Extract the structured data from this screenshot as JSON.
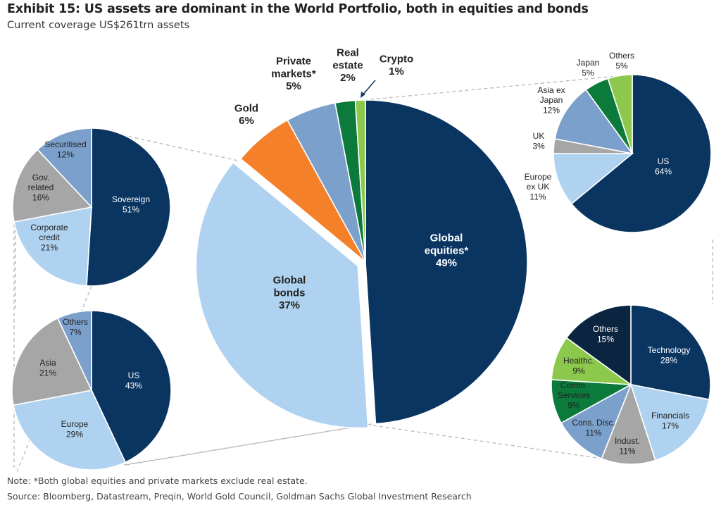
{
  "header": {
    "title": "Exhibit 15: US assets are dominant in the World Portfolio, both in equities and bonds",
    "subtitle": "Current coverage US$261trn assets"
  },
  "footer": {
    "note": "Note: *Both global equities and private markets exclude real estate.",
    "source": "Source: Bloomberg, Datastream, Preqin, World Gold Council, Goldman Sachs Global Investment Research"
  },
  "colors": {
    "navy": "#0a3560",
    "light_blue": "#aed2f0",
    "orange": "#f5802a",
    "mid_blue": "#7ba0cb",
    "dark_green": "#0b7a3b",
    "light_green": "#8cc84b",
    "grey": "#a6a6a6",
    "darkest": "#0b2440"
  },
  "chart_data": [
    {
      "id": "main",
      "type": "pie",
      "slices": [
        {
          "lines": [
            "Global",
            "equities*",
            "49%"
          ],
          "value": 49,
          "color": "#0a3560"
        },
        {
          "lines": [
            "Global",
            "bonds",
            "37%"
          ],
          "value": 37,
          "color": "#aed2f0"
        },
        {
          "lines": [
            "Gold",
            "6%"
          ],
          "value": 6,
          "color": "#f5802a"
        },
        {
          "lines": [
            "Private",
            "markets*",
            "5%"
          ],
          "value": 5,
          "color": "#7ba0cb"
        },
        {
          "lines": [
            "Real",
            "estate",
            "2%"
          ],
          "value": 2,
          "color": "#0b7a3b"
        },
        {
          "lines": [
            "Crypto",
            "1%"
          ],
          "value": 1,
          "color": "#8cc84b"
        }
      ]
    },
    {
      "id": "bonds-by-type",
      "type": "pie",
      "slices": [
        {
          "lines": [
            "Sovereign",
            "51%"
          ],
          "value": 51,
          "color": "#0a3560"
        },
        {
          "lines": [
            "Corporate",
            "credit",
            "21%"
          ],
          "value": 21,
          "color": "#aed2f0"
        },
        {
          "lines": [
            "Gov.",
            "related",
            "16%"
          ],
          "value": 16,
          "color": "#a6a6a6"
        },
        {
          "lines": [
            "Securitised",
            "12%"
          ],
          "value": 12,
          "color": "#7ba0cb"
        }
      ]
    },
    {
      "id": "bonds-by-region",
      "type": "pie",
      "slices": [
        {
          "lines": [
            "US",
            "43%"
          ],
          "value": 43,
          "color": "#0a3560"
        },
        {
          "lines": [
            "Europe",
            "29%"
          ],
          "value": 29,
          "color": "#aed2f0"
        },
        {
          "lines": [
            "Asia",
            "21%"
          ],
          "value": 21,
          "color": "#a6a6a6"
        },
        {
          "lines": [
            "Others",
            "7%"
          ],
          "value": 7,
          "color": "#7ba0cb"
        }
      ]
    },
    {
      "id": "equities-by-region",
      "type": "pie",
      "slices": [
        {
          "lines": [
            "US",
            "64%"
          ],
          "value": 64,
          "color": "#0a3560"
        },
        {
          "lines": [
            "Europe",
            "ex UK",
            "11%"
          ],
          "value": 11,
          "color": "#aed2f0"
        },
        {
          "lines": [
            "UK",
            "3%"
          ],
          "value": 3,
          "color": "#a6a6a6"
        },
        {
          "lines": [
            "Asia ex",
            "Japan",
            "12%"
          ],
          "value": 12,
          "color": "#7ba0cb"
        },
        {
          "lines": [
            "Japan",
            "5%"
          ],
          "value": 5,
          "color": "#0b7a3b"
        },
        {
          "lines": [
            "Others",
            "5%"
          ],
          "value": 5,
          "color": "#8cc84b"
        }
      ]
    },
    {
      "id": "equities-by-sector",
      "type": "pie",
      "slices": [
        {
          "lines": [
            "Technology",
            "28%"
          ],
          "value": 28,
          "color": "#0a3560"
        },
        {
          "lines": [
            "Financials",
            "17%"
          ],
          "value": 17,
          "color": "#aed2f0"
        },
        {
          "lines": [
            "Indust.",
            "11%"
          ],
          "value": 11,
          "color": "#a6a6a6"
        },
        {
          "lines": [
            "Cons. Disc.",
            "11%"
          ],
          "value": 11,
          "color": "#7ba0cb"
        },
        {
          "lines": [
            "Comm.",
            "Services",
            "9%"
          ],
          "value": 9,
          "color": "#0b7a3b"
        },
        {
          "lines": [
            "Healthc.",
            "9%"
          ],
          "value": 9,
          "color": "#8cc84b"
        },
        {
          "lines": [
            "Others",
            "15%"
          ],
          "value": 15,
          "color": "#0b2440"
        }
      ]
    }
  ]
}
